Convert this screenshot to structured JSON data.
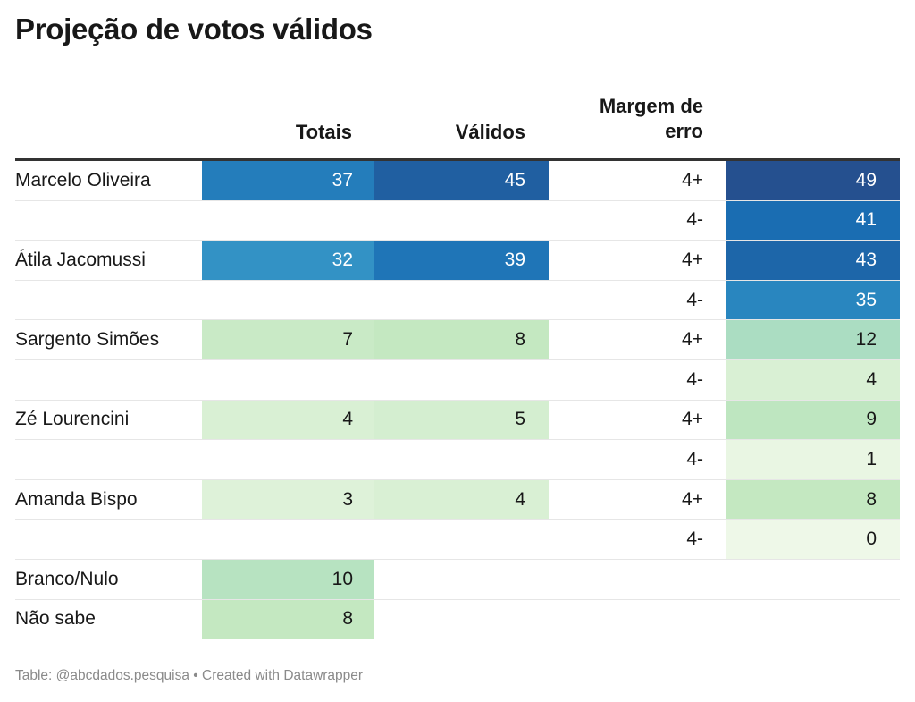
{
  "title": "Projeção de votos válidos",
  "columns": {
    "totais": "Totais",
    "validos": "Válidos",
    "margem_line1": "Margem de",
    "margem_line2": "erro"
  },
  "footer": "Table: @abcdados.pesquisa • Created with Datawrapper",
  "chart_data": {
    "type": "table",
    "title": "Projeção de votos válidos",
    "columns": [
      "",
      "Totais",
      "Válidos",
      "Margem de erro",
      ""
    ],
    "rows": [
      {
        "name": "Marcelo Oliveira",
        "totais": "37",
        "validos": "45",
        "margem": "4+",
        "faixa": "49"
      },
      {
        "name": "",
        "totais": "",
        "validos": "",
        "margem": "4-",
        "faixa": "41"
      },
      {
        "name": "Átila Jacomussi",
        "totais": "32",
        "validos": "39",
        "margem": "4+",
        "faixa": "43"
      },
      {
        "name": "",
        "totais": "",
        "validos": "",
        "margem": "4-",
        "faixa": "35"
      },
      {
        "name": "Sargento Simões",
        "totais": "7",
        "validos": "8",
        "margem": "4+",
        "faixa": "12"
      },
      {
        "name": "",
        "totais": "",
        "validos": "",
        "margem": "4-",
        "faixa": "4"
      },
      {
        "name": "Zé Lourencini",
        "totais": "4",
        "validos": "5",
        "margem": "4+",
        "faixa": "9"
      },
      {
        "name": "",
        "totais": "",
        "validos": "",
        "margem": "4-",
        "faixa": "1"
      },
      {
        "name": "Amanda Bispo",
        "totais": "3",
        "validos": "4",
        "margem": "4+",
        "faixa": "8"
      },
      {
        "name": "",
        "totais": "",
        "validos": "",
        "margem": "4-",
        "faixa": "0"
      },
      {
        "name": "Branco/Nulo",
        "totais": "10",
        "validos": "",
        "margem": "",
        "faixa": ""
      },
      {
        "name": "Não sabe",
        "totais": "8",
        "validos": "",
        "margem": "",
        "faixa": ""
      }
    ],
    "color_scale": {
      "type": "sequential",
      "domain": [
        0,
        49
      ],
      "stops": [
        "#eef8e8",
        "#c3e8c0",
        "#8fd0c4",
        "#5ab4cb",
        "#2f8fc4",
        "#1a6eb3",
        "#25508f"
      ]
    }
  }
}
